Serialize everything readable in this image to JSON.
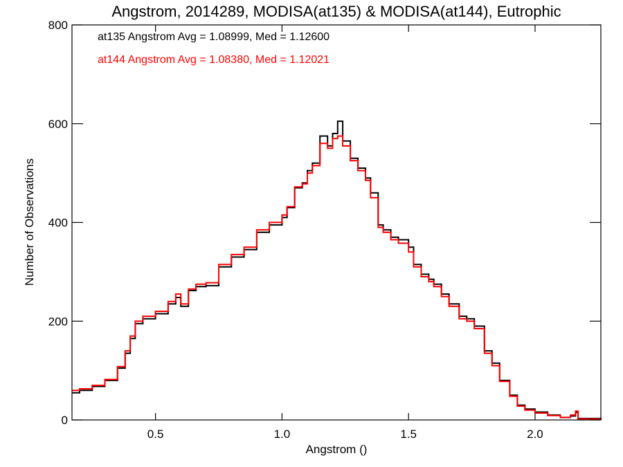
{
  "chart_data": {
    "type": "histogram-step",
    "title": "Angstrom, 2014289, MODISA(at135) & MODISA(at144), Eutrophic",
    "xlabel": "Angstrom ()",
    "ylabel": "Number of Observations",
    "xlim": [
      0.17,
      2.26
    ],
    "ylim": [
      0,
      800
    ],
    "xticks": [
      0.5,
      1.0,
      1.5,
      2.0
    ],
    "xtick_labels": [
      "0.5",
      "1.0",
      "1.5",
      "2.0"
    ],
    "yticks": [
      0,
      200,
      400,
      600,
      800
    ],
    "ytick_labels": [
      "0",
      "200",
      "400",
      "600",
      "800"
    ],
    "grid": false,
    "series": [
      {
        "name": "at135",
        "color": "#000000",
        "stat_text": "at135 Angstrom Avg = 1.08999, Med = 1.12600",
        "points": [
          [
            0.17,
            55
          ],
          [
            0.2,
            60
          ],
          [
            0.25,
            68
          ],
          [
            0.3,
            80
          ],
          [
            0.35,
            105
          ],
          [
            0.38,
            135
          ],
          [
            0.4,
            165
          ],
          [
            0.42,
            195
          ],
          [
            0.45,
            205
          ],
          [
            0.5,
            215
          ],
          [
            0.55,
            235
          ],
          [
            0.58,
            248
          ],
          [
            0.6,
            230
          ],
          [
            0.63,
            262
          ],
          [
            0.66,
            270
          ],
          [
            0.7,
            272
          ],
          [
            0.75,
            310
          ],
          [
            0.8,
            330
          ],
          [
            0.85,
            345
          ],
          [
            0.9,
            380
          ],
          [
            0.95,
            395
          ],
          [
            1.0,
            410
          ],
          [
            1.02,
            430
          ],
          [
            1.05,
            470
          ],
          [
            1.08,
            480
          ],
          [
            1.1,
            505
          ],
          [
            1.12,
            520
          ],
          [
            1.15,
            575
          ],
          [
            1.18,
            555
          ],
          [
            1.2,
            580
          ],
          [
            1.22,
            605
          ],
          [
            1.24,
            565
          ],
          [
            1.27,
            530
          ],
          [
            1.3,
            510
          ],
          [
            1.33,
            490
          ],
          [
            1.35,
            460
          ],
          [
            1.38,
            395
          ],
          [
            1.4,
            385
          ],
          [
            1.43,
            370
          ],
          [
            1.46,
            365
          ],
          [
            1.5,
            350
          ],
          [
            1.52,
            315
          ],
          [
            1.55,
            295
          ],
          [
            1.58,
            285
          ],
          [
            1.6,
            275
          ],
          [
            1.63,
            255
          ],
          [
            1.66,
            235
          ],
          [
            1.7,
            210
          ],
          [
            1.73,
            205
          ],
          [
            1.76,
            190
          ],
          [
            1.8,
            140
          ],
          [
            1.83,
            115
          ],
          [
            1.86,
            80
          ],
          [
            1.9,
            50
          ],
          [
            1.93,
            30
          ],
          [
            1.96,
            22
          ],
          [
            2.0,
            16
          ],
          [
            2.05,
            10
          ],
          [
            2.1,
            5
          ],
          [
            2.14,
            8
          ],
          [
            2.16,
            15
          ],
          [
            2.17,
            3
          ],
          [
            2.26,
            0
          ]
        ]
      },
      {
        "name": "at144",
        "color": "#ff0000",
        "stat_text": "at144 Angstrom Avg = 1.08380, Med = 1.12021",
        "points": [
          [
            0.17,
            60
          ],
          [
            0.2,
            63
          ],
          [
            0.25,
            70
          ],
          [
            0.3,
            82
          ],
          [
            0.35,
            108
          ],
          [
            0.38,
            140
          ],
          [
            0.4,
            170
          ],
          [
            0.42,
            200
          ],
          [
            0.45,
            210
          ],
          [
            0.5,
            220
          ],
          [
            0.55,
            240
          ],
          [
            0.58,
            255
          ],
          [
            0.6,
            235
          ],
          [
            0.63,
            265
          ],
          [
            0.66,
            275
          ],
          [
            0.7,
            278
          ],
          [
            0.75,
            315
          ],
          [
            0.8,
            335
          ],
          [
            0.85,
            350
          ],
          [
            0.9,
            385
          ],
          [
            0.95,
            400
          ],
          [
            1.0,
            415
          ],
          [
            1.02,
            432
          ],
          [
            1.05,
            472
          ],
          [
            1.08,
            478
          ],
          [
            1.1,
            500
          ],
          [
            1.12,
            515
          ],
          [
            1.15,
            560
          ],
          [
            1.18,
            550
          ],
          [
            1.2,
            570
          ],
          [
            1.22,
            575
          ],
          [
            1.24,
            555
          ],
          [
            1.27,
            525
          ],
          [
            1.3,
            505
          ],
          [
            1.33,
            485
          ],
          [
            1.35,
            450
          ],
          [
            1.38,
            390
          ],
          [
            1.4,
            380
          ],
          [
            1.43,
            365
          ],
          [
            1.46,
            358
          ],
          [
            1.5,
            340
          ],
          [
            1.52,
            310
          ],
          [
            1.55,
            290
          ],
          [
            1.58,
            280
          ],
          [
            1.6,
            270
          ],
          [
            1.63,
            250
          ],
          [
            1.66,
            230
          ],
          [
            1.7,
            205
          ],
          [
            1.73,
            200
          ],
          [
            1.76,
            185
          ],
          [
            1.8,
            135
          ],
          [
            1.83,
            110
          ],
          [
            1.86,
            78
          ],
          [
            1.9,
            48
          ],
          [
            1.93,
            28
          ],
          [
            1.96,
            20
          ],
          [
            2.0,
            14
          ],
          [
            2.05,
            9
          ],
          [
            2.1,
            5
          ],
          [
            2.14,
            10
          ],
          [
            2.16,
            18
          ],
          [
            2.17,
            2
          ],
          [
            2.26,
            0
          ]
        ]
      }
    ]
  }
}
